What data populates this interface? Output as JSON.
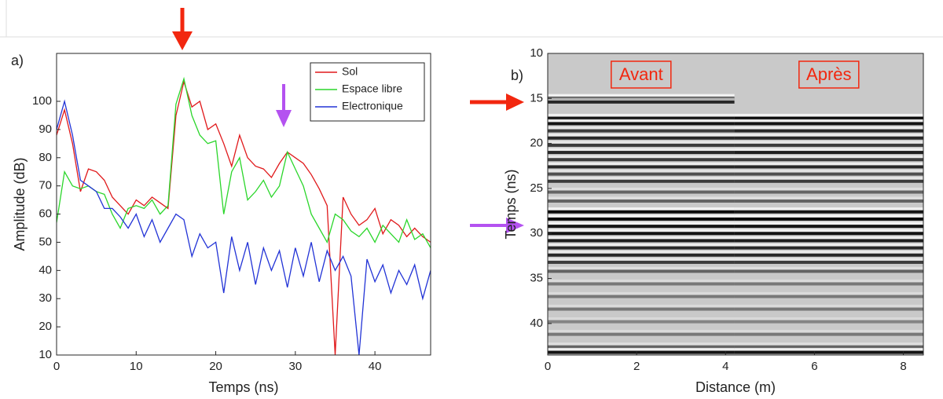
{
  "chart_data": [
    {
      "type": "line",
      "panel_label": "a)",
      "xlabel": "Temps (ns)",
      "ylabel": "Amplitude (dB)",
      "xlim": [
        0,
        47
      ],
      "ylim": [
        10,
        117
      ],
      "xticks": [
        0,
        10,
        20,
        30,
        40
      ],
      "yticks": [
        10,
        20,
        30,
        40,
        50,
        60,
        70,
        80,
        90,
        100
      ],
      "legend": "northeast",
      "grid": false,
      "x": [
        0,
        1,
        2,
        3,
        4,
        5,
        6,
        7,
        8,
        9,
        10,
        11,
        12,
        13,
        14,
        15,
        16,
        17,
        18,
        19,
        20,
        21,
        22,
        23,
        24,
        25,
        26,
        27,
        28,
        29,
        30,
        31,
        32,
        33,
        34,
        35,
        36,
        37,
        38,
        39,
        40,
        41,
        42,
        43,
        44,
        45,
        46,
        47
      ],
      "series": [
        {
          "name": "Sol",
          "color": "#e0191b",
          "values": [
            88,
            97,
            85,
            68,
            76,
            75,
            72,
            66,
            63,
            60,
            65,
            63,
            66,
            64,
            62,
            95,
            107,
            98,
            100,
            90,
            92,
            85,
            77,
            88,
            80,
            77,
            76,
            73,
            78,
            82,
            80,
            78,
            74,
            69,
            63,
            10,
            66,
            60,
            56,
            58,
            62,
            53,
            58,
            56,
            52,
            55,
            52,
            50
          ]
        },
        {
          "name": "Espace libre",
          "color": "#2bd62b",
          "values": [
            57,
            75,
            70,
            69,
            70,
            68,
            67,
            60,
            55,
            62,
            63,
            62,
            65,
            60,
            63,
            99,
            108,
            95,
            88,
            85,
            86,
            60,
            75,
            80,
            65,
            68,
            72,
            66,
            70,
            82,
            76,
            70,
            60,
            55,
            50,
            60,
            58,
            54,
            52,
            55,
            50,
            56,
            53,
            50,
            58,
            51,
            53,
            48
          ]
        },
        {
          "name": "Electronique",
          "color": "#2233d6",
          "values": [
            90,
            100,
            88,
            72,
            70,
            68,
            62,
            62,
            59,
            55,
            60,
            52,
            58,
            50,
            55,
            60,
            58,
            45,
            53,
            48,
            50,
            32,
            52,
            40,
            50,
            35,
            48,
            40,
            47,
            34,
            48,
            38,
            50,
            36,
            47,
            40,
            45,
            38,
            10,
            44,
            36,
            42,
            32,
            40,
            35,
            42,
            30,
            40
          ]
        }
      ]
    },
    {
      "type": "radargram",
      "panel_label": "b)",
      "xlabel": "Distance (m)",
      "ylabel": "Temps (ns)",
      "xlim": [
        0,
        8.45
      ],
      "ylim": [
        43.5,
        10
      ],
      "xticks": [
        0,
        2,
        4,
        6,
        8
      ],
      "yticks": [
        10,
        15,
        20,
        25,
        30,
        35,
        40
      ],
      "sections": [
        {
          "name": "Avant",
          "range": [
            0,
            4.2
          ],
          "reflector_times": [
            15,
            15.4,
            17.2,
            17.8,
            18.6,
            19.4,
            20.2,
            21,
            21.8,
            22.6,
            23.4,
            24.2,
            25.4,
            26.4,
            27.6,
            28.4,
            29.2,
            30,
            30.8,
            31.6,
            32.4,
            33.2,
            34.2,
            35.6,
            37,
            38.4,
            39.8,
            41.2,
            42.6,
            43.2
          ],
          "reflector_intensity": [
            0.9,
            0.8,
            0.9,
            0.9,
            0.7,
            0.8,
            0.7,
            0.8,
            0.7,
            0.8,
            0.6,
            0.7,
            0.5,
            0.5,
            0.95,
            0.95,
            0.9,
            0.9,
            0.85,
            0.8,
            0.8,
            0.7,
            0.5,
            0.4,
            0.4,
            0.4,
            0.35,
            0.4,
            0.5,
            0.9
          ]
        },
        {
          "name": "Après",
          "range": [
            4.2,
            8.45
          ],
          "reflector_times": [
            17.2,
            17.8,
            18.6,
            19.4,
            20.2,
            21,
            21.8,
            22.6,
            23.4,
            24.2,
            25.4,
            26.4,
            27.6,
            28.4,
            29.2,
            30,
            30.8,
            31.6,
            32.4,
            33.2,
            34.2,
            35.6,
            37,
            38.4,
            39.8,
            41.2,
            42.6,
            43.2
          ],
          "reflector_intensity": [
            0.95,
            0.9,
            0.8,
            0.8,
            0.7,
            0.85,
            0.7,
            0.8,
            0.6,
            0.7,
            0.5,
            0.5,
            0.9,
            0.95,
            0.9,
            0.9,
            0.85,
            0.8,
            0.8,
            0.7,
            0.5,
            0.4,
            0.4,
            0.4,
            0.35,
            0.4,
            0.5,
            0.9
          ]
        }
      ]
    }
  ]
}
